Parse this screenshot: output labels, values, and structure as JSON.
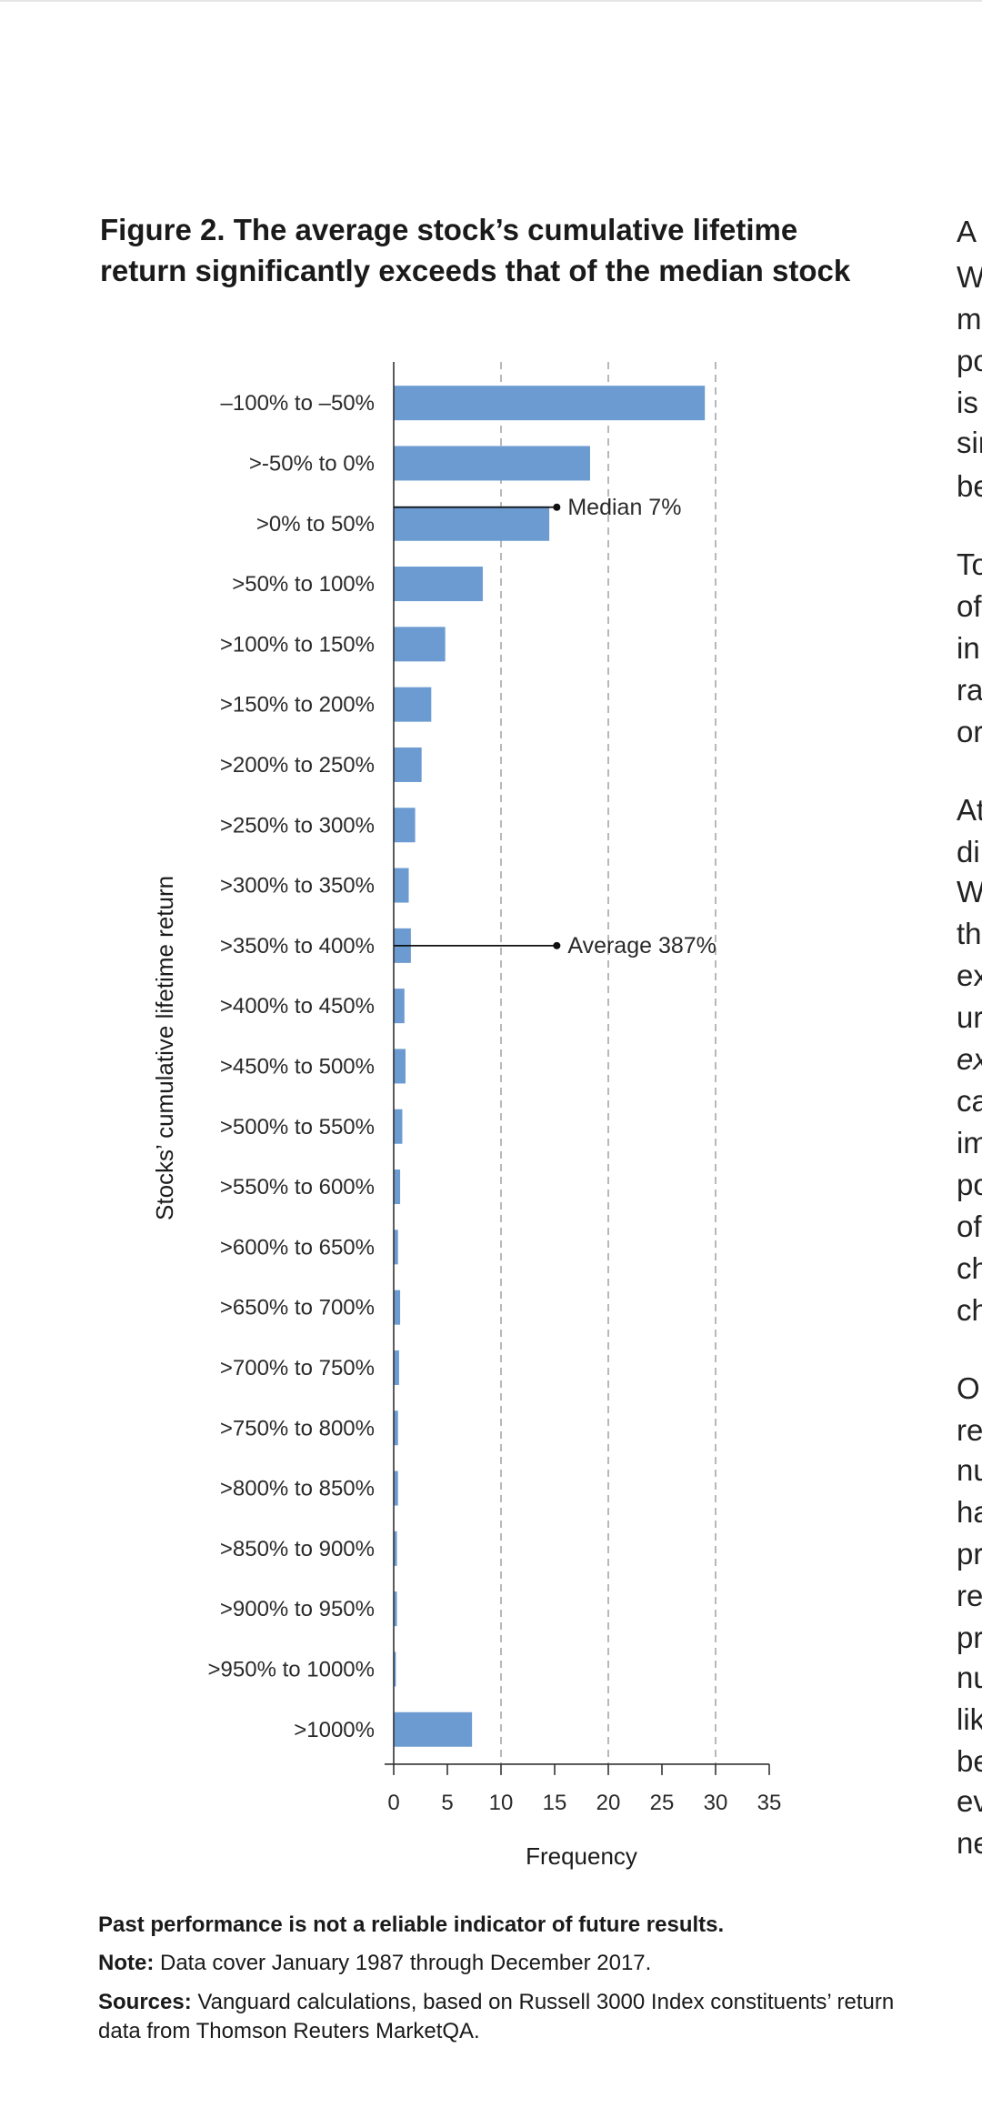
{
  "figure": {
    "title_line1": "Figure 2. The average stock’s cumulative lifetime",
    "title_line2": "return significantly exceeds that of the median stock"
  },
  "chart_data": {
    "type": "bar",
    "orientation": "horizontal",
    "categories": [
      "–100% to –50%",
      ">-50% to 0%",
      ">0% to 50%",
      ">50% to 100%",
      ">100% to 150%",
      ">150% to 200%",
      ">200% to 250%",
      ">250% to 300%",
      ">300% to 350%",
      ">350% to 400%",
      ">400% to 450%",
      ">450% to 500%",
      ">500% to 550%",
      ">550% to 600%",
      ">600% to 650%",
      ">650% to 700%",
      ">700% to 750%",
      ">750% to 800%",
      ">800% to 850%",
      ">850% to 900%",
      ">900% to 950%",
      ">950% to 1000%",
      ">1000%"
    ],
    "values": [
      29,
      18.3,
      14.5,
      8.3,
      4.8,
      3.5,
      2.6,
      2.0,
      1.4,
      1.6,
      1.0,
      1.1,
      0.8,
      0.6,
      0.4,
      0.6,
      0.5,
      0.4,
      0.4,
      0.3,
      0.3,
      0.2,
      7.3
    ],
    "xlabel": "Frequency",
    "ylabel": "Stocks’ cumulative lifetime return",
    "xlim": [
      0,
      35
    ],
    "xticks": [
      0,
      5,
      10,
      15,
      20,
      25,
      30,
      35
    ],
    "xtick_labels": [
      "0",
      "5",
      "10",
      "15",
      "20",
      "25",
      "30",
      "35"
    ],
    "gridlines_x": [
      10,
      20,
      30
    ],
    "grid": "vertical dashed at 10, 20, 30",
    "bar_color": "#6b9bd1",
    "annotations": [
      {
        "text": "Median 7%",
        "category_index": 2,
        "x_value": 15.2
      },
      {
        "text": "Average 387%",
        "category_index": 9,
        "x_value": 15.2
      }
    ]
  },
  "footer": {
    "disclaimer": "Past performance is not a reliable indicator of future results.",
    "note_label": "Note:",
    "note_text": " Data cover January 1987 through December 2017.",
    "sources_label": "Sources:",
    "sources_text": " Vanguard calculations, based on Russell 3000 Index constituents’ return data from Thomson Reuters MarketQA."
  },
  "right_column_fragments": [
    "A",
    "W",
    "m",
    "po",
    "is",
    "sir",
    "be",
    "To",
    "of",
    "in",
    "ra",
    "or",
    "At",
    "di",
    "W",
    "th",
    "ex",
    "ur",
    "ex",
    "ca",
    "im",
    "po",
    "of",
    "ch",
    "ch",
    "O",
    "re",
    "nu",
    "ha",
    "pr",
    "re",
    "pr",
    "nu",
    "lik",
    "be",
    "ev",
    "ne"
  ]
}
